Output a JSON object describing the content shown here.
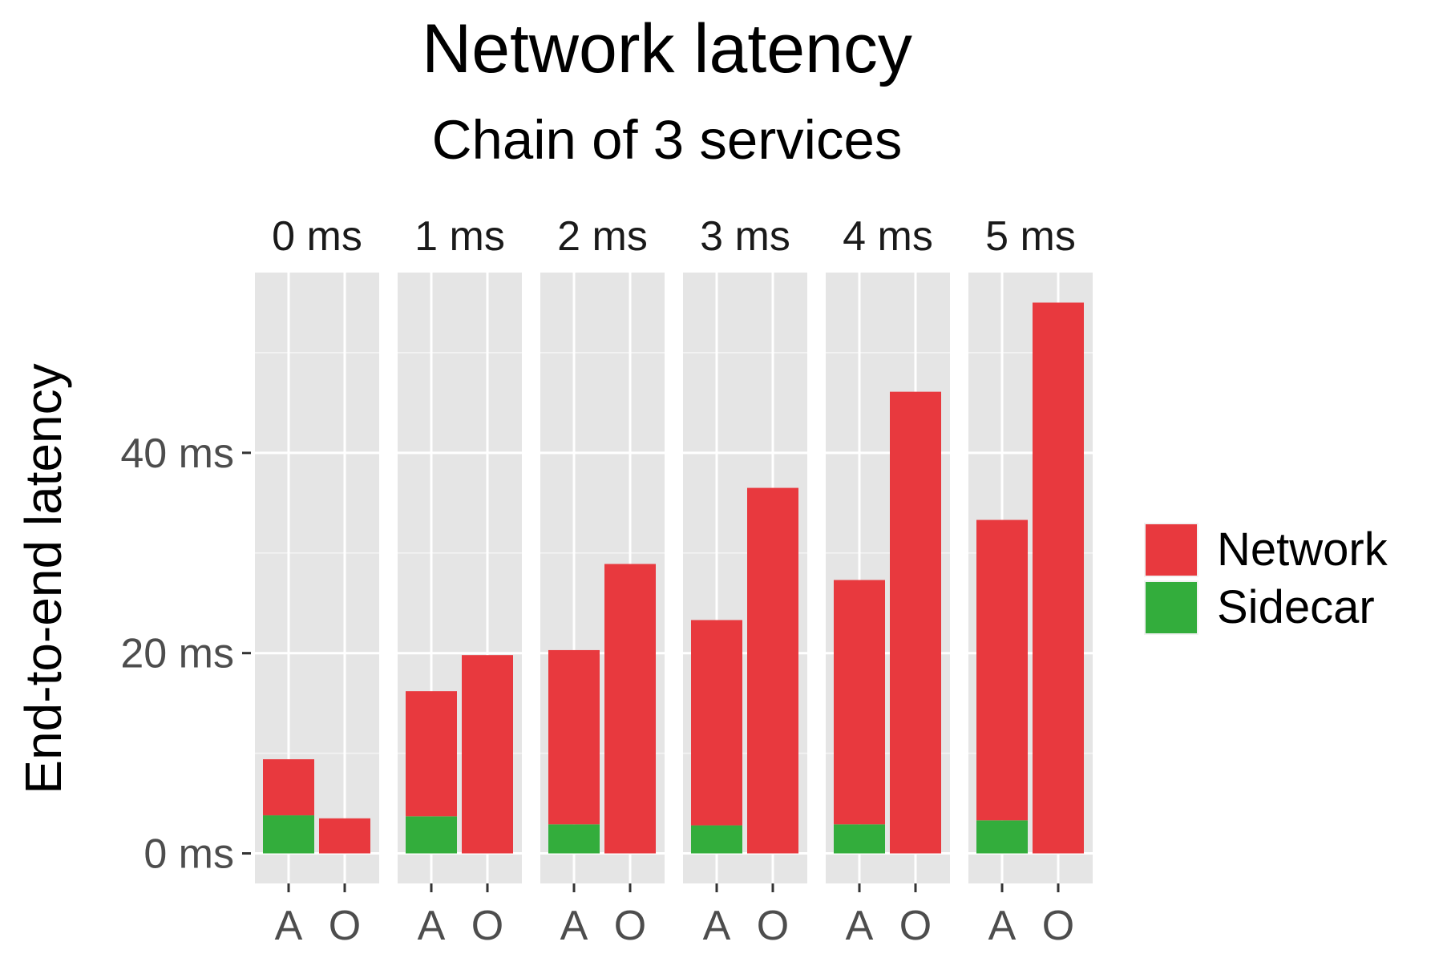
{
  "chart_data": {
    "type": "bar",
    "stacked": true,
    "title": "Network latency",
    "subtitle": "Chain of 3 services",
    "ylabel": "End-to-end latency",
    "xlabel": "",
    "ylim": [
      -3,
      58
    ],
    "yticks": [
      0,
      20,
      40
    ],
    "ytick_labels": [
      "0 ms",
      "20 ms",
      "40 ms"
    ],
    "grid": true,
    "legend_position": "right",
    "facets": [
      "0 ms",
      "1 ms",
      "2 ms",
      "3 ms",
      "4 ms",
      "5 ms"
    ],
    "categories": [
      "A",
      "O"
    ],
    "series": [
      {
        "name": "Network",
        "color": "#E8393E",
        "values": [
          [
            5.6,
            3.5
          ],
          [
            12.5,
            19.8
          ],
          [
            17.4,
            28.9
          ],
          [
            20.5,
            36.5
          ],
          [
            24.4,
            46.1
          ],
          [
            30.0,
            55.0
          ]
        ]
      },
      {
        "name": "Sidecar",
        "color": "#33AD3C",
        "values": [
          [
            3.8,
            0
          ],
          [
            3.7,
            0
          ],
          [
            2.9,
            0
          ],
          [
            2.8,
            0
          ],
          [
            2.9,
            0
          ],
          [
            3.3,
            0
          ]
        ]
      }
    ],
    "legend_order": [
      "Network",
      "Sidecar"
    ]
  }
}
